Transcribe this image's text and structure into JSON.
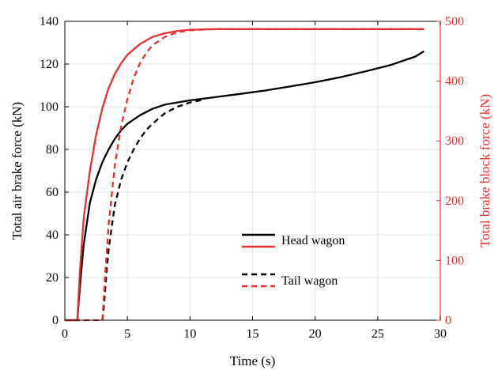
{
  "chart_data": {
    "type": "line",
    "xlabel": "Time (s)",
    "ylabel_left": "Total air brake force (kN)",
    "ylabel_right": "Total brake block force (kN)",
    "xlim": [
      0,
      30
    ],
    "ylim_left": [
      0,
      140
    ],
    "ylim_right": [
      0,
      500
    ],
    "xticks": [
      0,
      5,
      10,
      15,
      20,
      25,
      30
    ],
    "yticks_left": [
      0,
      20,
      40,
      60,
      80,
      100,
      120,
      140
    ],
    "yticks_right": [
      0,
      100,
      200,
      300,
      400,
      500
    ],
    "grid": true,
    "legend_position": "center",
    "colors": {
      "left_axis": "#000000",
      "right_axis": "#e8312f"
    },
    "legend": [
      {
        "label": "Head wagon",
        "styles": [
          "solid-black",
          "solid-red"
        ]
      },
      {
        "label": "Tail wagon",
        "styles": [
          "dashed-black",
          "dashed-red"
        ]
      }
    ],
    "series": [
      {
        "axis": "left",
        "color": "#000000",
        "dash": false,
        "x": [
          0,
          1.0,
          1.1,
          1.3,
          1.5,
          1.8,
          2.0,
          2.5,
          3.0,
          3.5,
          4.0,
          4.5,
          5.0,
          6.0,
          7.0,
          8.0,
          9.0,
          10.0,
          12.0,
          14.0,
          16.0,
          18.0,
          20.0,
          22.0,
          24.0,
          26.0,
          28.0,
          28.7
        ],
        "y": [
          0,
          0,
          8,
          22,
          35,
          47,
          55,
          66,
          74,
          80,
          85,
          89,
          92,
          96,
          99,
          101,
          102,
          103,
          104.5,
          106,
          107.6,
          109.5,
          111.5,
          113.8,
          116.5,
          119.5,
          123.5,
          126
        ]
      },
      {
        "axis": "right",
        "color": "#e8312f",
        "dash": false,
        "x": [
          0,
          1.0,
          1.2,
          1.5,
          2.0,
          2.5,
          3.0,
          3.5,
          4.0,
          4.5,
          5.0,
          6.0,
          7.0,
          8.0,
          9.0,
          10.0,
          12.0,
          15.0,
          20.0,
          25.0,
          28.7
        ],
        "y": [
          0,
          0,
          80,
          170,
          250,
          310,
          355,
          388,
          412,
          430,
          444,
          462,
          474,
          480,
          484,
          486,
          487,
          487,
          487,
          487,
          487
        ]
      },
      {
        "axis": "left",
        "color": "#000000",
        "dash": true,
        "x": [
          3.0,
          3.1,
          3.3,
          3.5,
          3.8,
          4.0,
          4.5,
          5.0,
          5.5,
          6.0,
          6.5,
          7.0,
          8.0,
          9.0,
          10.0,
          11.0
        ],
        "y": [
          0,
          5,
          20,
          33,
          46,
          54,
          66,
          74,
          80,
          85,
          89,
          92,
          97,
          100,
          102,
          103.2
        ]
      },
      {
        "axis": "right",
        "color": "#e8312f",
        "dash": true,
        "x": [
          0,
          3.0,
          3.2,
          3.5,
          4.0,
          4.5,
          5.0,
          5.5,
          6.0,
          6.5,
          7.0,
          8.0,
          9.0,
          10.0,
          12.0,
          15.0,
          20.0,
          25.0,
          28.7
        ],
        "y": [
          0,
          0,
          70,
          160,
          260,
          325,
          370,
          405,
          430,
          447,
          460,
          474,
          482,
          485,
          487,
          487,
          487,
          487,
          487
        ]
      }
    ]
  }
}
